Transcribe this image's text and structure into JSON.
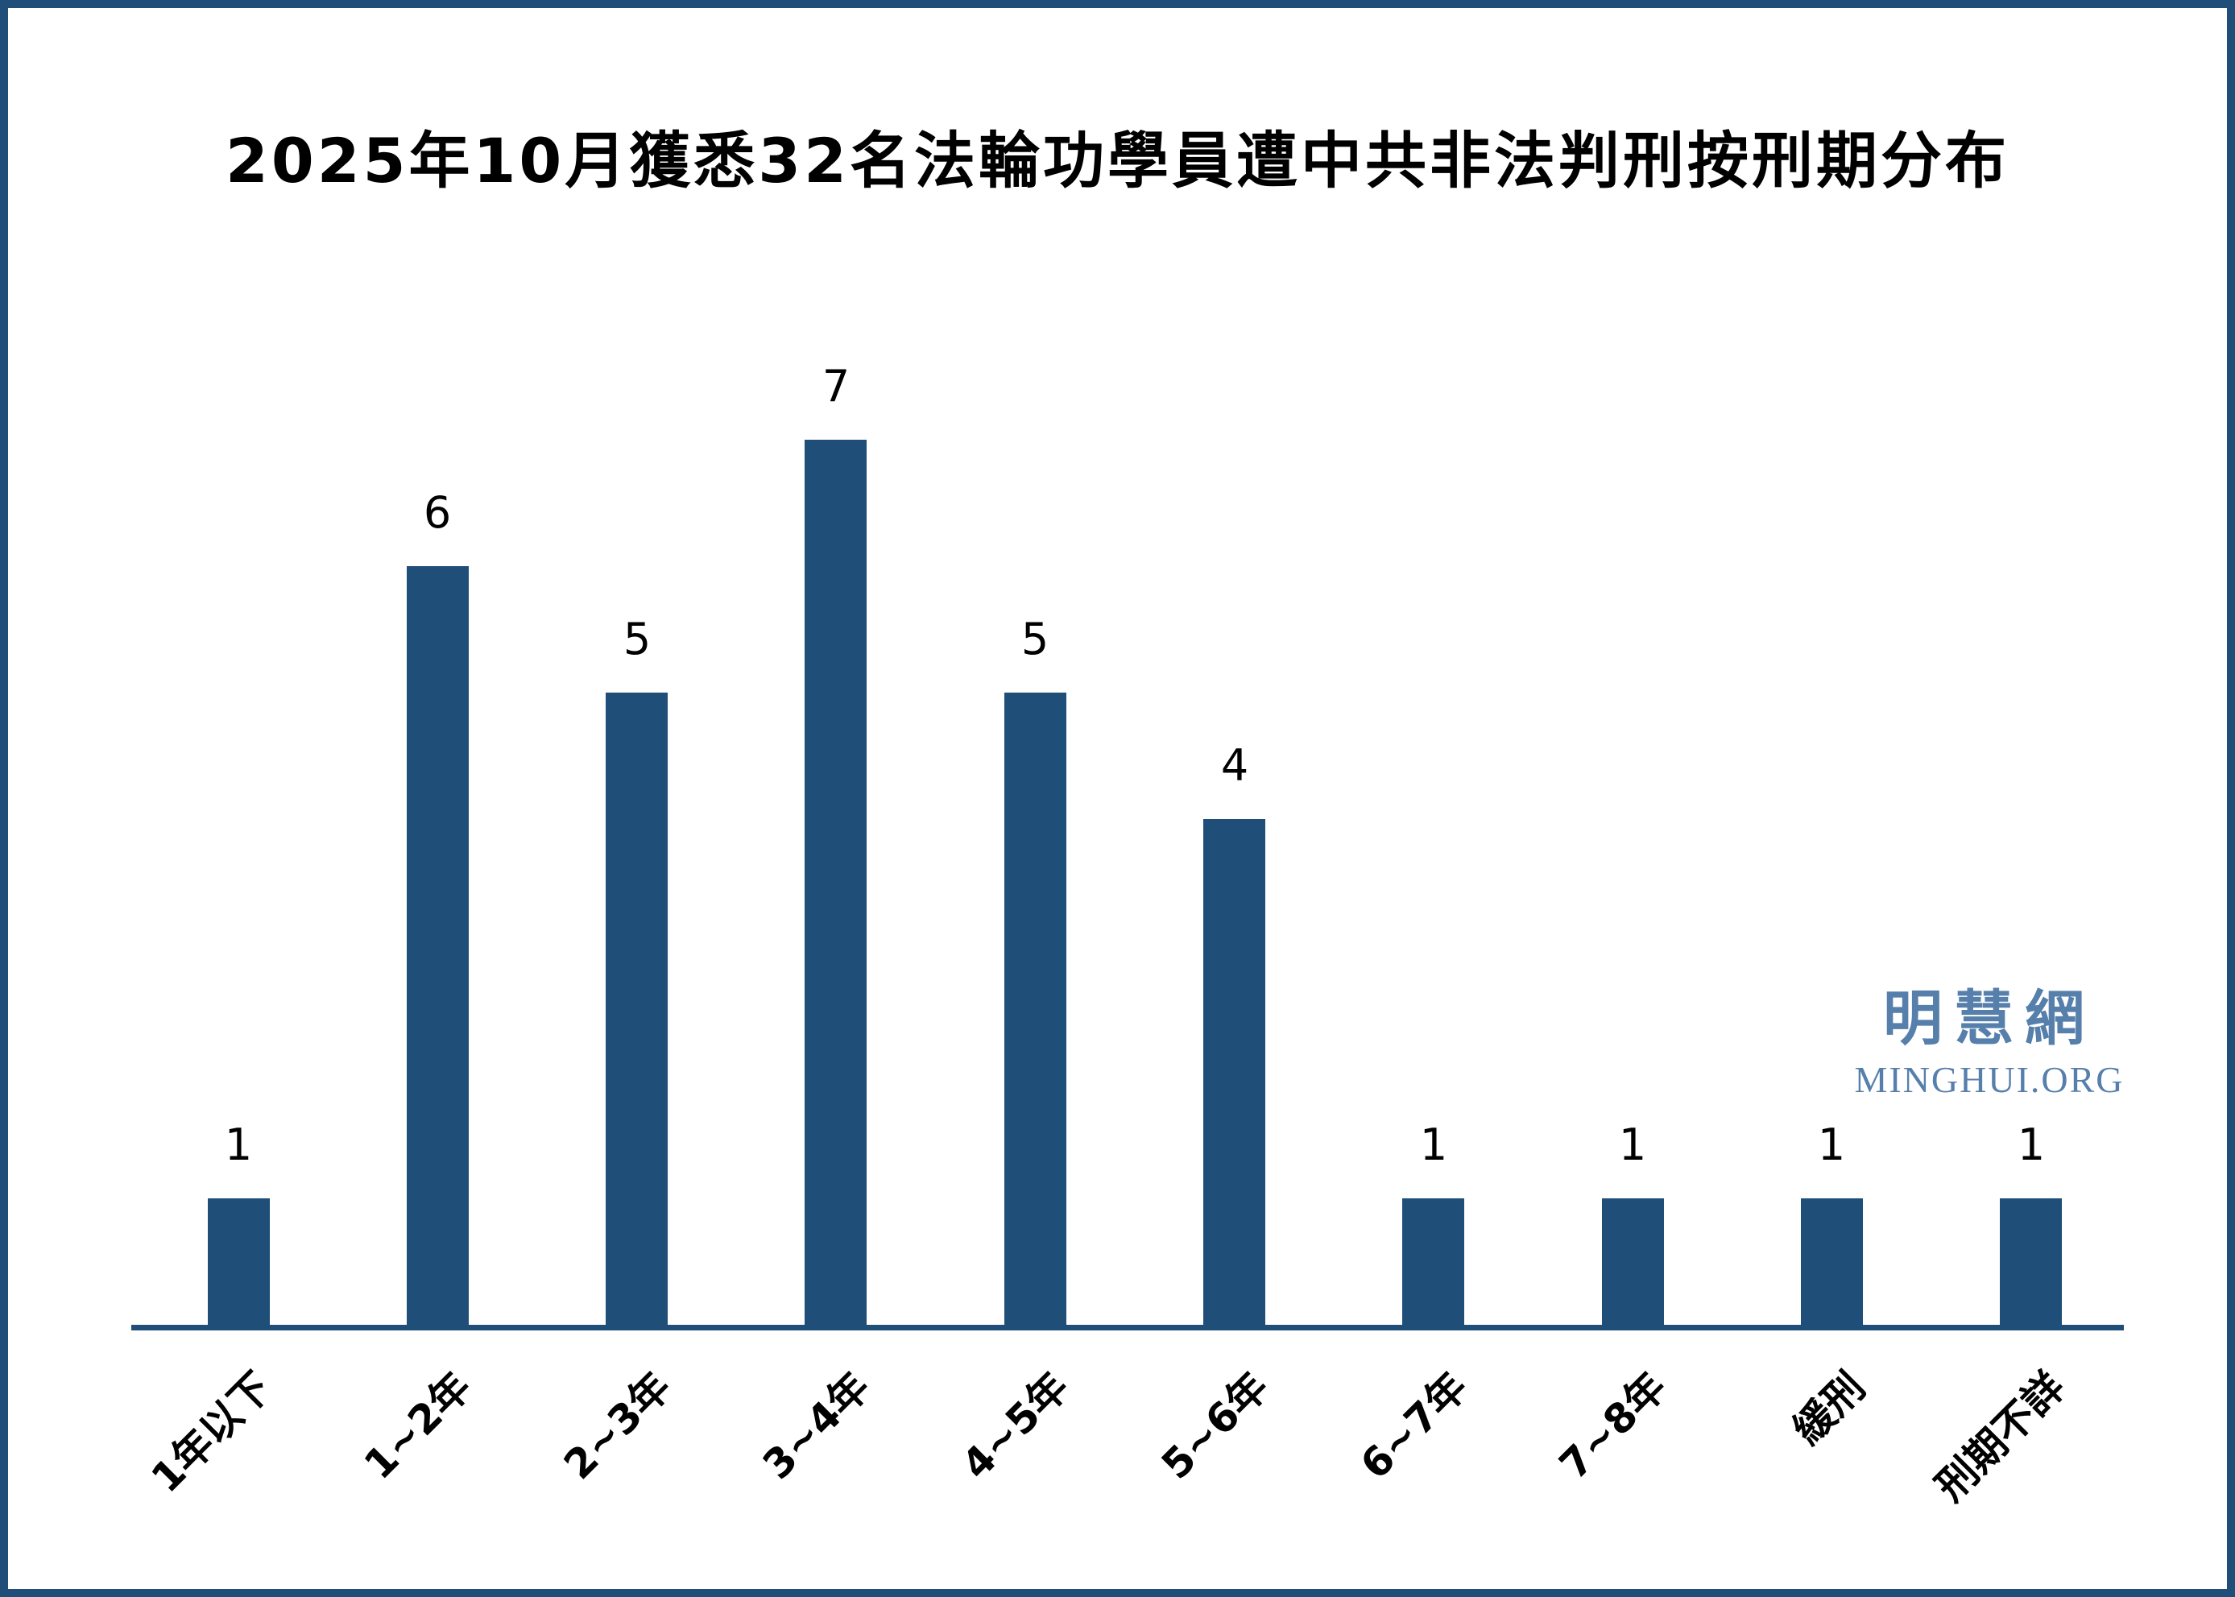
{
  "title": "2025年10月獲悉32名法輪功學員遭中共非法判刑按刑期分布",
  "watermark": {
    "cjk": "明慧網",
    "latin": "MINGHUI.ORG"
  },
  "colors": {
    "bar": "#1F4E79",
    "axis": "#1F4E79",
    "frame_border": "#1F4E79",
    "watermark": "#567FAB",
    "text": "#000000",
    "background": "#FFFFFF"
  },
  "chart_data": {
    "type": "bar",
    "title": "2025年10月獲悉32名法輪功學員遭中共非法判刑按刑期分布",
    "categories": [
      "1年以下",
      "1~2年",
      "2~3年",
      "3~4年",
      "4~5年",
      "5~6年",
      "6~7年",
      "7~8年",
      "緩刑",
      "刑期不詳"
    ],
    "values": [
      1,
      6,
      5,
      7,
      5,
      4,
      1,
      1,
      1,
      1
    ],
    "total": 32,
    "xlabel": "",
    "ylabel": "",
    "ylim": [
      0,
      7.5
    ],
    "grid": false,
    "legend": null,
    "bar_color": "#1F4E79",
    "value_labels_shown": true,
    "x_tick_rotation_deg": 45
  }
}
